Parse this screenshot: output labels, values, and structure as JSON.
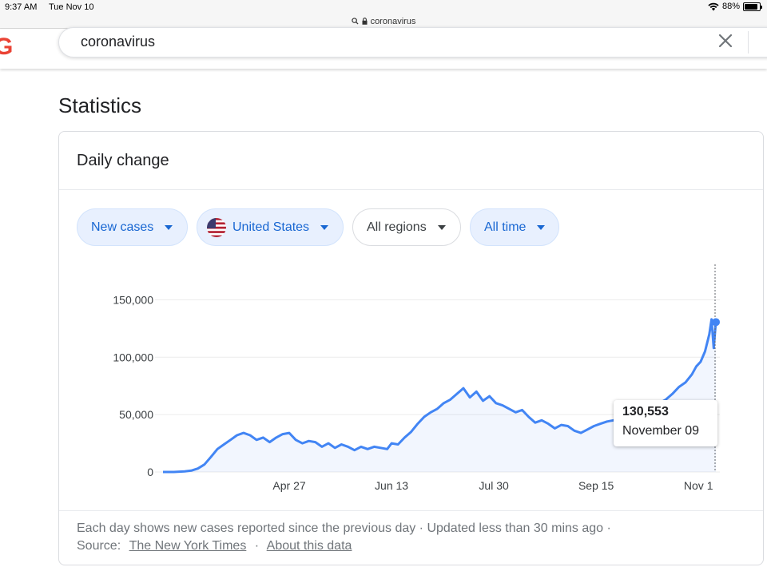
{
  "status_bar": {
    "time": "9:37 AM",
    "date": "Tue Nov 10",
    "battery": "88%",
    "battery_level": 0.88
  },
  "address_bar": {
    "url": "coronavirus"
  },
  "search": {
    "query": "coronavirus"
  },
  "statistics": {
    "title": "Statistics",
    "card_title": "Daily change",
    "filters": [
      {
        "label": "New cases"
      },
      {
        "label": "United States"
      },
      {
        "label": "All regions"
      },
      {
        "label": "All time"
      }
    ],
    "tooltip": {
      "value": "130,553",
      "date": "November 09"
    },
    "footer": {
      "description": "Each day shows new cases reported since the previous day · Updated less than 30 mins ago ·",
      "source_label": "Source:",
      "source_link": "The New York Times",
      "separator": "·",
      "about_link": "About this data"
    }
  },
  "colors": {
    "line": "#4285f4",
    "chip_bg": "#e8f0fe",
    "chip_text": "#1967d2",
    "brand_red": "#ea4335"
  },
  "chart_data": {
    "type": "area",
    "x_tick_labels": [
      "Apr 27",
      "Jun 13",
      "Jul 30",
      "Sep 15",
      "Nov 1"
    ],
    "y_tick_labels": [
      "0",
      "50,000",
      "100,000",
      "150,000"
    ],
    "ylim": [
      0,
      160000
    ],
    "grid": true,
    "x_dates": [
      "2020-02-29",
      "2020-03-05",
      "2020-03-10",
      "2020-03-13",
      "2020-03-16",
      "2020-03-19",
      "2020-03-22",
      "2020-03-25",
      "2020-03-28",
      "2020-03-31",
      "2020-04-03",
      "2020-04-06",
      "2020-04-09",
      "2020-04-12",
      "2020-04-15",
      "2020-04-18",
      "2020-04-21",
      "2020-04-24",
      "2020-04-27",
      "2020-04-30",
      "2020-05-03",
      "2020-05-06",
      "2020-05-09",
      "2020-05-12",
      "2020-05-15",
      "2020-05-18",
      "2020-05-21",
      "2020-05-24",
      "2020-05-27",
      "2020-05-30",
      "2020-06-02",
      "2020-06-05",
      "2020-06-08",
      "2020-06-11",
      "2020-06-13",
      "2020-06-16",
      "2020-06-19",
      "2020-06-22",
      "2020-06-25",
      "2020-06-28",
      "2020-07-01",
      "2020-07-04",
      "2020-07-07",
      "2020-07-10",
      "2020-07-13",
      "2020-07-16",
      "2020-07-19",
      "2020-07-22",
      "2020-07-25",
      "2020-07-28",
      "2020-07-31",
      "2020-08-03",
      "2020-08-06",
      "2020-08-09",
      "2020-08-12",
      "2020-08-15",
      "2020-08-18",
      "2020-08-21",
      "2020-08-24",
      "2020-08-27",
      "2020-08-30",
      "2020-09-02",
      "2020-09-05",
      "2020-09-08",
      "2020-09-11",
      "2020-09-14",
      "2020-09-17",
      "2020-09-20",
      "2020-09-23",
      "2020-09-26",
      "2020-09-29",
      "2020-10-02",
      "2020-10-05",
      "2020-10-08",
      "2020-10-11",
      "2020-10-14",
      "2020-10-17",
      "2020-10-20",
      "2020-10-23",
      "2020-10-26",
      "2020-10-29",
      "2020-10-31",
      "2020-11-02",
      "2020-11-04",
      "2020-11-06",
      "2020-11-07",
      "2020-11-08",
      "2020-11-09"
    ],
    "series": [
      {
        "values": [
          0,
          0,
          500,
          1200,
          3000,
          6500,
          13000,
          20000,
          24000,
          28000,
          32000,
          34000,
          32000,
          28000,
          30000,
          26000,
          30000,
          33000,
          34000,
          28000,
          25000,
          27000,
          26000,
          22000,
          25000,
          21000,
          24000,
          22000,
          19000,
          22000,
          20000,
          22000,
          21000,
          20000,
          25000,
          24000,
          30000,
          35000,
          42000,
          48000,
          52000,
          55000,
          60000,
          63000,
          68000,
          73000,
          65000,
          70000,
          62000,
          66000,
          60000,
          58000,
          55000,
          52000,
          54000,
          48000,
          43000,
          45000,
          42000,
          38000,
          41000,
          40000,
          36000,
          34000,
          37000,
          40000,
          42000,
          44000,
          45000,
          47000,
          48000,
          52000,
          55000,
          57000,
          58000,
          60000,
          63000,
          68000,
          74000,
          78000,
          85000,
          92000,
          96000,
          105000,
          120000,
          133000,
          108000,
          130553
        ]
      }
    ],
    "highlight": {
      "date": "2020-11-09",
      "value": 130553
    }
  }
}
